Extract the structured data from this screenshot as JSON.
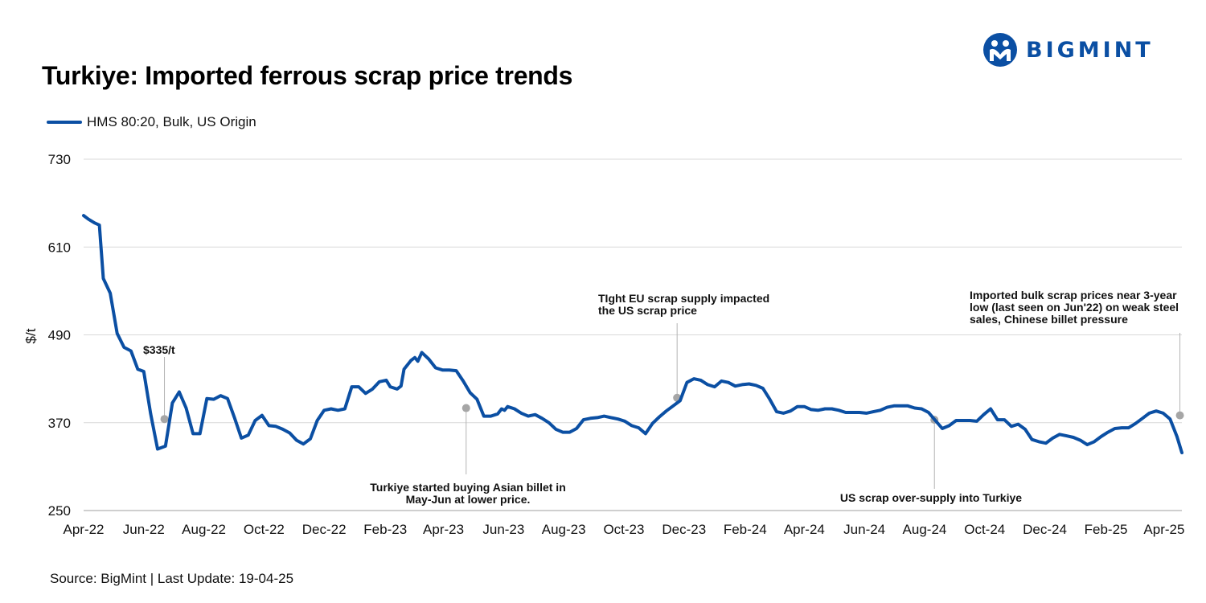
{
  "title": "Turkiye: Imported ferrous scrap price trends",
  "source": "Source: BigMint | Last Update: 19-04-25",
  "brand": {
    "name": "BIGMINT",
    "color": "#0b4fa3"
  },
  "chart_data": {
    "type": "line",
    "title": "Turkiye: Imported ferrous scrap price trends",
    "xlabel": "",
    "ylabel": "$/t",
    "ylim": [
      250,
      730
    ],
    "yticks": [
      "250",
      "370",
      "490",
      "610",
      "730"
    ],
    "ytick_values": [
      250,
      370,
      490,
      610,
      730
    ],
    "xlim": [
      "2022-04-01",
      "2025-04-19"
    ],
    "xticks": [
      "Apr-22",
      "Jun-22",
      "Aug-22",
      "Oct-22",
      "Dec-22",
      "Feb-23",
      "Apr-23",
      "Jun-23",
      "Aug-23",
      "Oct-23",
      "Dec-23",
      "Feb-24",
      "Apr-24",
      "Jun-24",
      "Aug-24",
      "Oct-24",
      "Dec-24",
      "Feb-25",
      "Apr-25"
    ],
    "xtick_dates": [
      "2022-04-01",
      "2022-06-01",
      "2022-08-01",
      "2022-10-01",
      "2022-12-01",
      "2023-02-01",
      "2023-04-01",
      "2023-06-01",
      "2023-08-01",
      "2023-10-01",
      "2023-12-01",
      "2024-02-01",
      "2024-04-01",
      "2024-06-01",
      "2024-08-01",
      "2024-10-01",
      "2024-12-01",
      "2025-02-01",
      "2025-04-01"
    ],
    "grid": "horizontal",
    "legend_position": "top-left",
    "series": [
      {
        "name": "HMS 80:20, Bulk, US Origin",
        "color": "#0b4fa3",
        "points": [
          [
            "2022-04-01",
            653
          ],
          [
            "2022-04-06",
            648
          ],
          [
            "2022-04-12",
            643
          ],
          [
            "2022-04-17",
            640
          ],
          [
            "2022-04-21",
            567
          ],
          [
            "2022-04-28",
            547
          ],
          [
            "2022-05-05",
            492
          ],
          [
            "2022-05-12",
            473
          ],
          [
            "2022-05-19",
            468
          ],
          [
            "2022-05-26",
            443
          ],
          [
            "2022-06-01",
            440
          ],
          [
            "2022-06-08",
            382
          ],
          [
            "2022-06-15",
            334
          ],
          [
            "2022-06-23",
            338
          ],
          [
            "2022-06-30",
            397
          ],
          [
            "2022-07-07",
            412
          ],
          [
            "2022-07-14",
            390
          ],
          [
            "2022-07-21",
            355
          ],
          [
            "2022-07-28",
            355
          ],
          [
            "2022-08-04",
            403
          ],
          [
            "2022-08-11",
            402
          ],
          [
            "2022-08-18",
            407
          ],
          [
            "2022-08-25",
            403
          ],
          [
            "2022-09-01",
            377
          ],
          [
            "2022-09-08",
            349
          ],
          [
            "2022-09-15",
            353
          ],
          [
            "2022-09-22",
            373
          ],
          [
            "2022-09-29",
            380
          ],
          [
            "2022-10-06",
            366
          ],
          [
            "2022-10-13",
            365
          ],
          [
            "2022-10-20",
            361
          ],
          [
            "2022-10-27",
            356
          ],
          [
            "2022-11-03",
            346
          ],
          [
            "2022-11-10",
            341
          ],
          [
            "2022-11-17",
            348
          ],
          [
            "2022-11-24",
            373
          ],
          [
            "2022-12-01",
            387
          ],
          [
            "2022-12-08",
            389
          ],
          [
            "2022-12-15",
            387
          ],
          [
            "2022-12-22",
            389
          ],
          [
            "2022-12-29",
            419
          ],
          [
            "2023-01-05",
            419
          ],
          [
            "2023-01-12",
            410
          ],
          [
            "2023-01-19",
            416
          ],
          [
            "2023-01-26",
            426
          ],
          [
            "2023-02-02",
            428
          ],
          [
            "2023-02-06",
            419
          ],
          [
            "2023-02-13",
            416
          ],
          [
            "2023-02-17",
            420
          ],
          [
            "2023-02-20",
            443
          ],
          [
            "2023-02-27",
            455
          ],
          [
            "2023-03-03",
            459
          ],
          [
            "2023-03-06",
            454
          ],
          [
            "2023-03-10",
            466
          ],
          [
            "2023-03-17",
            457
          ],
          [
            "2023-03-24",
            445
          ],
          [
            "2023-03-31",
            442
          ],
          [
            "2023-04-07",
            442
          ],
          [
            "2023-04-14",
            441
          ],
          [
            "2023-04-21",
            427
          ],
          [
            "2023-04-28",
            411
          ],
          [
            "2023-05-05",
            402
          ],
          [
            "2023-05-12",
            379
          ],
          [
            "2023-05-19",
            379
          ],
          [
            "2023-05-26",
            382
          ],
          [
            "2023-05-30",
            389
          ],
          [
            "2023-06-02",
            387
          ],
          [
            "2023-06-05",
            392
          ],
          [
            "2023-06-12",
            389
          ],
          [
            "2023-06-19",
            383
          ],
          [
            "2023-06-26",
            379
          ],
          [
            "2023-07-03",
            381
          ],
          [
            "2023-07-10",
            376
          ],
          [
            "2023-07-17",
            370
          ],
          [
            "2023-07-24",
            361
          ],
          [
            "2023-07-31",
            357
          ],
          [
            "2023-08-07",
            357
          ],
          [
            "2023-08-14",
            362
          ],
          [
            "2023-08-21",
            374
          ],
          [
            "2023-08-28",
            376
          ],
          [
            "2023-09-04",
            377
          ],
          [
            "2023-09-11",
            379
          ],
          [
            "2023-09-18",
            377
          ],
          [
            "2023-09-25",
            375
          ],
          [
            "2023-10-02",
            372
          ],
          [
            "2023-10-09",
            366
          ],
          [
            "2023-10-16",
            363
          ],
          [
            "2023-10-23",
            355
          ],
          [
            "2023-10-30",
            369
          ],
          [
            "2023-11-06",
            378
          ],
          [
            "2023-11-13",
            386
          ],
          [
            "2023-11-20",
            393
          ],
          [
            "2023-11-27",
            400
          ],
          [
            "2023-12-04",
            425
          ],
          [
            "2023-12-11",
            430
          ],
          [
            "2023-12-18",
            428
          ],
          [
            "2023-12-25",
            422
          ],
          [
            "2024-01-01",
            419
          ],
          [
            "2024-01-08",
            427
          ],
          [
            "2024-01-15",
            425
          ],
          [
            "2024-01-22",
            420
          ],
          [
            "2024-01-29",
            422
          ],
          [
            "2024-02-05",
            423
          ],
          [
            "2024-02-12",
            421
          ],
          [
            "2024-02-19",
            417
          ],
          [
            "2024-02-26",
            402
          ],
          [
            "2024-03-04",
            385
          ],
          [
            "2024-03-11",
            383
          ],
          [
            "2024-03-18",
            386
          ],
          [
            "2024-03-25",
            392
          ],
          [
            "2024-04-01",
            392
          ],
          [
            "2024-04-08",
            388
          ],
          [
            "2024-04-15",
            387
          ],
          [
            "2024-04-22",
            389
          ],
          [
            "2024-04-29",
            389
          ],
          [
            "2024-05-06",
            387
          ],
          [
            "2024-05-13",
            384
          ],
          [
            "2024-05-20",
            384
          ],
          [
            "2024-05-27",
            384
          ],
          [
            "2024-06-03",
            383
          ],
          [
            "2024-06-10",
            385
          ],
          [
            "2024-06-17",
            387
          ],
          [
            "2024-06-24",
            391
          ],
          [
            "2024-07-01",
            393
          ],
          [
            "2024-07-08",
            393
          ],
          [
            "2024-07-15",
            393
          ],
          [
            "2024-07-22",
            390
          ],
          [
            "2024-07-29",
            389
          ],
          [
            "2024-08-05",
            384
          ],
          [
            "2024-08-12",
            373
          ],
          [
            "2024-08-19",
            362
          ],
          [
            "2024-08-26",
            366
          ],
          [
            "2024-09-02",
            373
          ],
          [
            "2024-09-09",
            373
          ],
          [
            "2024-09-16",
            373
          ],
          [
            "2024-09-23",
            372
          ],
          [
            "2024-09-30",
            381
          ],
          [
            "2024-10-07",
            389
          ],
          [
            "2024-10-14",
            374
          ],
          [
            "2024-10-21",
            374
          ],
          [
            "2024-10-28",
            365
          ],
          [
            "2024-11-04",
            368
          ],
          [
            "2024-11-11",
            361
          ],
          [
            "2024-11-18",
            347
          ],
          [
            "2024-11-25",
            344
          ],
          [
            "2024-12-02",
            342
          ],
          [
            "2024-12-09",
            349
          ],
          [
            "2024-12-16",
            354
          ],
          [
            "2024-12-23",
            352
          ],
          [
            "2024-12-30",
            350
          ],
          [
            "2025-01-06",
            346
          ],
          [
            "2025-01-13",
            340
          ],
          [
            "2025-01-20",
            344
          ],
          [
            "2025-01-27",
            351
          ],
          [
            "2025-02-03",
            357
          ],
          [
            "2025-02-10",
            362
          ],
          [
            "2025-02-17",
            363
          ],
          [
            "2025-02-24",
            363
          ],
          [
            "2025-03-03",
            369
          ],
          [
            "2025-03-10",
            376
          ],
          [
            "2025-03-17",
            383
          ],
          [
            "2025-03-24",
            386
          ],
          [
            "2025-03-31",
            383
          ],
          [
            "2025-04-07",
            375
          ],
          [
            "2025-04-14",
            351
          ],
          [
            "2025-04-19",
            329
          ]
        ]
      }
    ],
    "annotations": [
      {
        "lines": [
          "$335/t"
        ],
        "date": "2022-06-22",
        "value": 375,
        "stem_to": 335
      },
      {
        "lines": [
          "Turkiye started buying Asian billet in",
          "May-Jun at lower price."
        ],
        "date": "2023-04-24",
        "value": 390,
        "stem_to": "below"
      },
      {
        "lines": [
          "TIght EU scrap supply impacted",
          "the US scrap price"
        ],
        "date": "2023-11-24",
        "value": 404,
        "stem_to": "above"
      },
      {
        "lines": [
          "US scrap over-supply into Turkiye"
        ],
        "date": "2024-08-11",
        "value": 374,
        "stem_to": "below"
      },
      {
        "lines": [
          "Imported bulk scrap prices near 3-year",
          "low (last seen on Jun'22) on weak steel",
          "sales, Chinese billet pressure"
        ],
        "date": "2025-04-17",
        "value": 380,
        "stem_to": "above"
      }
    ]
  }
}
